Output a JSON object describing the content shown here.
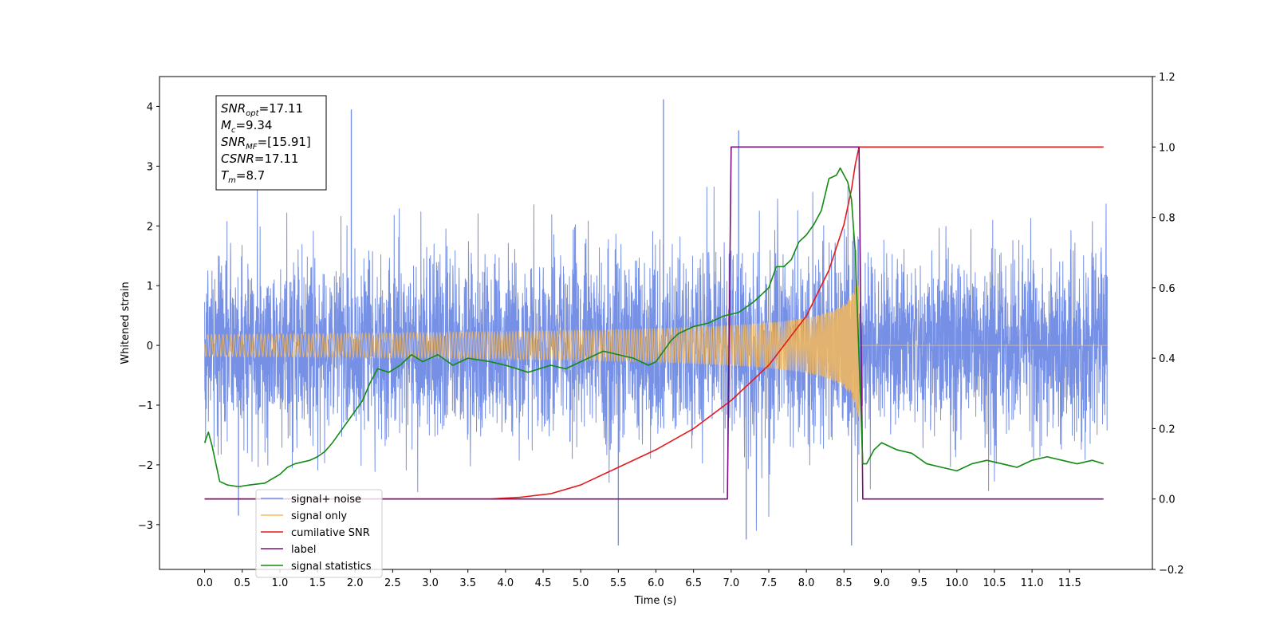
{
  "chart_data": {
    "type": "line",
    "title": "",
    "xlabel": "Time (s)",
    "ylabel": "Whitened strain",
    "y2label": "",
    "xlim": [
      -0.6,
      12.6
    ],
    "ylim": [
      -3.75,
      4.5
    ],
    "y2lim": [
      -0.2,
      1.2
    ],
    "xticks": [
      "0.0",
      "0.5",
      "1.0",
      "1.5",
      "2.0",
      "2.5",
      "3.0",
      "3.5",
      "4.0",
      "4.5",
      "5.0",
      "5.5",
      "6.0",
      "6.5",
      "7.0",
      "7.5",
      "8.0",
      "8.5",
      "9.0",
      "9.5",
      "10.0",
      "10.5",
      "11.0",
      "11.5"
    ],
    "yticks": [
      "−3",
      "−2",
      "−1",
      "0",
      "1",
      "2",
      "3",
      "4"
    ],
    "y2ticks": [
      "−0.2",
      "0.0",
      "0.2",
      "0.4",
      "0.6",
      "0.8",
      "1.0",
      "1.2"
    ],
    "grid": false,
    "legend_position": "lower-left",
    "annotation": {
      "lines": [
        {
          "base": "SNR",
          "sub": "opt",
          "value": "=17.11"
        },
        {
          "base": "M",
          "sub": "c",
          "value": "=9.34"
        },
        {
          "base": "SNR",
          "sub": "MF",
          "value": "=[15.91]"
        },
        {
          "base": "CSNR",
          "sub": "",
          "value": "=17.11"
        },
        {
          "base": "T",
          "sub": "m",
          "value": "=8.7"
        }
      ]
    },
    "series": [
      {
        "name": "signal+ noise",
        "axis": "left",
        "color": "#7690e6",
        "noise_amplitude": 1.0,
        "notable_peaks": [
          {
            "x": 1.95,
            "y": 3.95
          },
          {
            "x": 6.1,
            "y": 4.12
          },
          {
            "x": 7.1,
            "y": 3.6
          },
          {
            "x": 5.5,
            "y": -3.35
          },
          {
            "x": 8.6,
            "y": -3.35
          },
          {
            "x": 7.2,
            "y": -3.25
          },
          {
            "x": 0.45,
            "y": -2.85
          }
        ]
      },
      {
        "name": "signal only",
        "axis": "left",
        "color": "#f5b95a",
        "merger_time": 8.7,
        "peak_amplitude": 1.3
      },
      {
        "name": "cumilative SNR",
        "axis": "right",
        "color": "#e41a1c",
        "x": [
          0.0,
          3.8,
          4.2,
          4.6,
          5.0,
          5.5,
          6.0,
          6.5,
          7.0,
          7.5,
          8.0,
          8.3,
          8.5,
          8.6,
          8.65,
          8.7,
          11.95
        ],
        "y": [
          0.0,
          0.0,
          0.005,
          0.015,
          0.04,
          0.09,
          0.14,
          0.2,
          0.28,
          0.38,
          0.52,
          0.65,
          0.78,
          0.88,
          0.95,
          1.0,
          1.0
        ]
      },
      {
        "name": "label",
        "axis": "right",
        "color": "#7b0f7b",
        "x": [
          0.0,
          6.95,
          7.0,
          8.7,
          8.75,
          11.95
        ],
        "y": [
          0.0,
          0.0,
          1.0,
          1.0,
          0.0,
          0.0
        ]
      },
      {
        "name": "signal statistics",
        "axis": "right",
        "color": "#138a13",
        "x": [
          0.0,
          0.05,
          0.1,
          0.2,
          0.3,
          0.45,
          0.6,
          0.8,
          1.0,
          1.1,
          1.2,
          1.4,
          1.5,
          1.6,
          1.7,
          1.8,
          1.9,
          2.0,
          2.1,
          2.2,
          2.3,
          2.45,
          2.6,
          2.75,
          2.9,
          3.1,
          3.3,
          3.5,
          3.8,
          4.0,
          4.3,
          4.45,
          4.6,
          4.8,
          5.0,
          5.2,
          5.3,
          5.5,
          5.7,
          5.9,
          6.0,
          6.2,
          6.3,
          6.5,
          6.7,
          6.9,
          7.1,
          7.3,
          7.4,
          7.5,
          7.6,
          7.7,
          7.8,
          7.9,
          8.0,
          8.1,
          8.2,
          8.3,
          8.4,
          8.45,
          8.5,
          8.55,
          8.6,
          8.65,
          8.7,
          8.75,
          8.8,
          8.9,
          9.0,
          9.2,
          9.4,
          9.6,
          9.8,
          10.0,
          10.2,
          10.4,
          10.6,
          10.8,
          11.0,
          11.2,
          11.4,
          11.6,
          11.8,
          11.95
        ],
        "y": [
          0.16,
          0.19,
          0.15,
          0.05,
          0.04,
          0.035,
          0.04,
          0.045,
          0.07,
          0.09,
          0.1,
          0.11,
          0.12,
          0.135,
          0.16,
          0.19,
          0.22,
          0.25,
          0.28,
          0.33,
          0.37,
          0.36,
          0.38,
          0.41,
          0.39,
          0.41,
          0.38,
          0.4,
          0.39,
          0.38,
          0.36,
          0.37,
          0.38,
          0.37,
          0.39,
          0.41,
          0.42,
          0.41,
          0.4,
          0.38,
          0.39,
          0.45,
          0.47,
          0.49,
          0.5,
          0.52,
          0.53,
          0.56,
          0.58,
          0.6,
          0.66,
          0.66,
          0.68,
          0.73,
          0.75,
          0.78,
          0.82,
          0.91,
          0.92,
          0.94,
          0.92,
          0.9,
          0.85,
          0.7,
          0.4,
          0.1,
          0.1,
          0.14,
          0.16,
          0.14,
          0.13,
          0.1,
          0.09,
          0.08,
          0.1,
          0.11,
          0.1,
          0.09,
          0.11,
          0.12,
          0.11,
          0.1,
          0.11,
          0.1
        ]
      }
    ]
  }
}
